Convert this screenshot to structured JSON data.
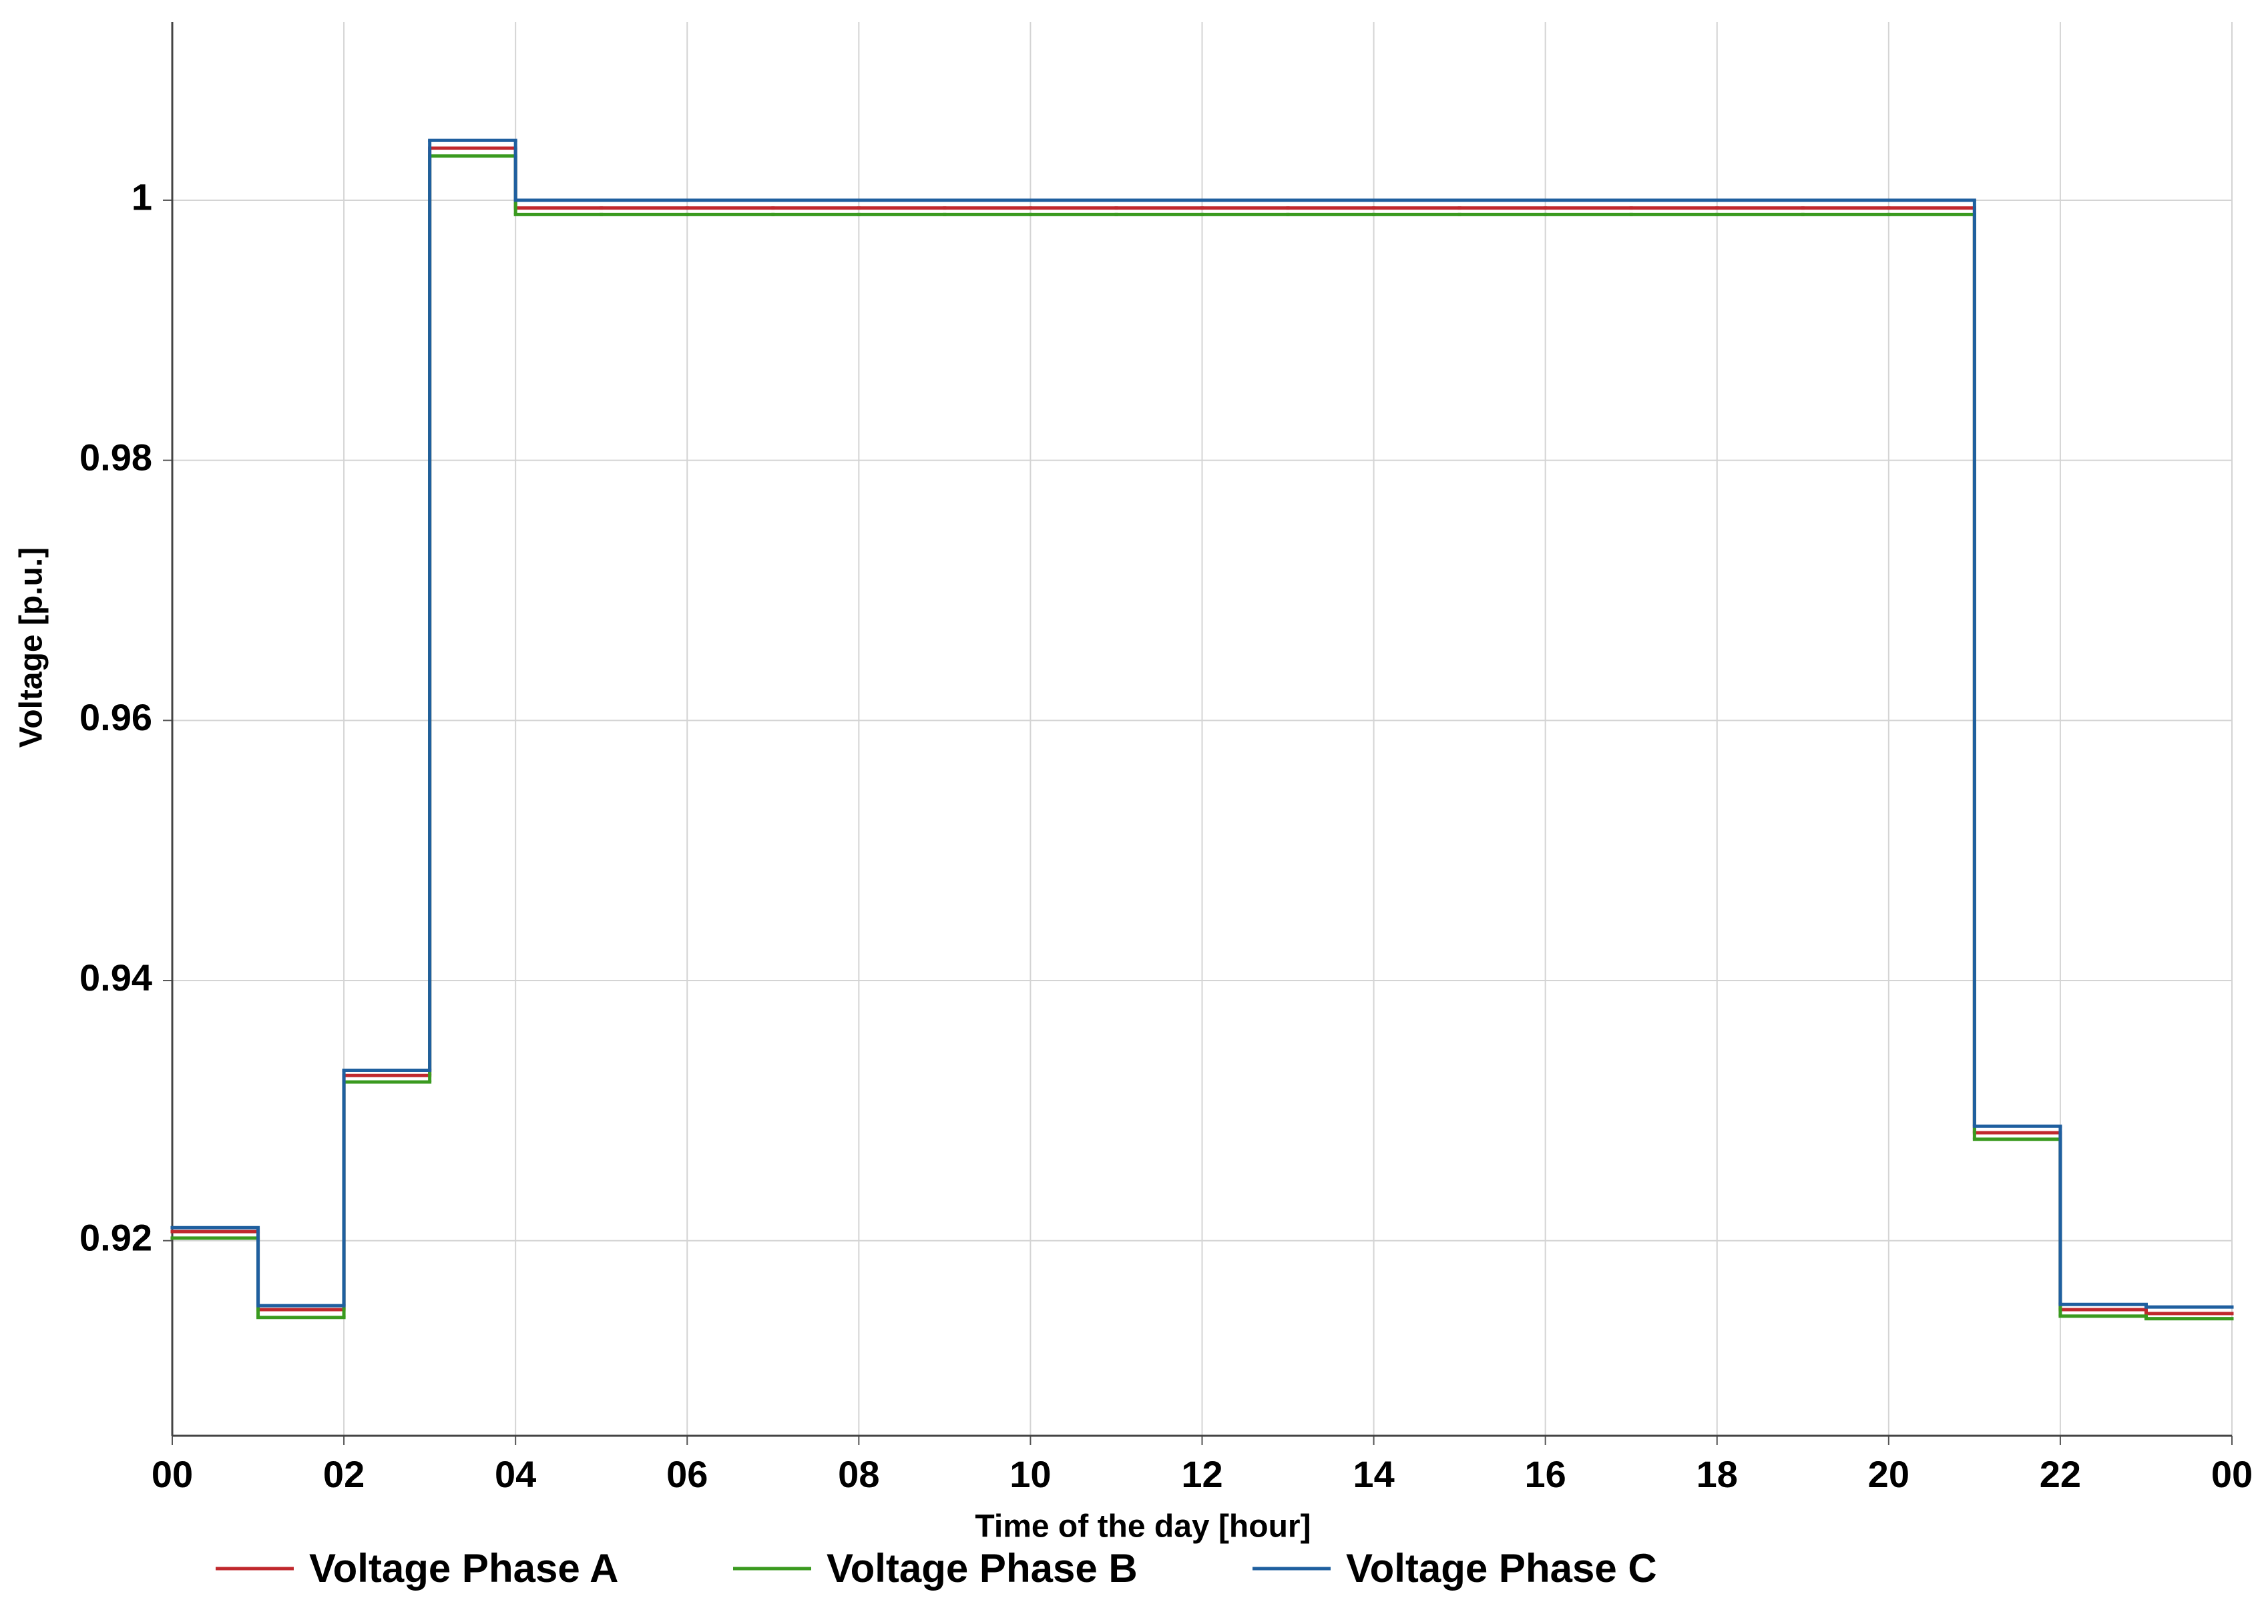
{
  "chart_data": {
    "type": "step",
    "x_label": "Time of the day [hour]",
    "y_label": "Voltage [p.u.]",
    "x": [
      0,
      1,
      2,
      3,
      4,
      5,
      6,
      7,
      8,
      9,
      10,
      11,
      12,
      13,
      14,
      15,
      16,
      17,
      18,
      19,
      20,
      21,
      22,
      23
    ],
    "series": [
      {
        "name": "Voltage Phase A",
        "color": "#c0282d",
        "values": [
          0.9207,
          0.9147,
          0.9327,
          1.004,
          0.9994,
          0.9994,
          0.9994,
          0.9994,
          0.9994,
          0.9994,
          0.9994,
          0.9994,
          0.9994,
          0.9994,
          0.9994,
          0.9994,
          0.9994,
          0.9994,
          0.9994,
          0.9994,
          0.9994,
          0.9283,
          0.9147,
          0.9144
        ]
      },
      {
        "name": "Voltage Phase B",
        "color": "#3a9a1f",
        "values": [
          0.9202,
          0.9141,
          0.9322,
          1.0034,
          0.9989,
          0.9989,
          0.9989,
          0.9989,
          0.9989,
          0.9989,
          0.9989,
          0.9989,
          0.9989,
          0.9989,
          0.9989,
          0.9989,
          0.9989,
          0.9989,
          0.9989,
          0.9989,
          0.9989,
          0.9278,
          0.9142,
          0.914
        ]
      },
      {
        "name": "Voltage Phase C",
        "color": "#1f5f9f",
        "values": [
          0.921,
          0.915,
          0.9331,
          1.0046,
          1.0,
          1.0,
          1.0,
          1.0,
          1.0,
          1.0,
          1.0,
          1.0,
          1.0,
          1.0,
          1.0,
          1.0,
          1.0,
          1.0,
          1.0,
          1.0,
          1.0,
          0.9288,
          0.9151,
          0.9149
        ]
      }
    ],
    "xlim": [
      0,
      24
    ],
    "xticks": [
      {
        "value": 0,
        "label": "00"
      },
      {
        "value": 2,
        "label": "02"
      },
      {
        "value": 4,
        "label": "04"
      },
      {
        "value": 6,
        "label": "06"
      },
      {
        "value": 8,
        "label": "08"
      },
      10,
      12,
      14,
      16,
      18,
      20,
      22,
      {
        "value": 24,
        "label": "00"
      }
    ],
    "ylim": [
      0.905,
      1.0137
    ],
    "yticks": [
      0.92,
      0.94,
      0.96,
      0.98,
      1
    ],
    "grid": true,
    "legend": "bottom"
  }
}
